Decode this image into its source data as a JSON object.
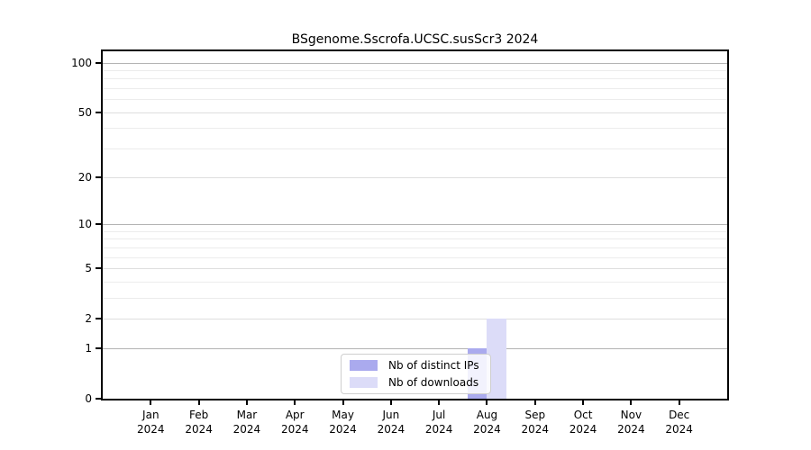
{
  "chart_data": {
    "type": "bar",
    "title": "BSgenome.Sscrofa.UCSC.susScr3 2024",
    "categories": [
      "Jan",
      "Feb",
      "Mar",
      "Apr",
      "May",
      "Jun",
      "Jul",
      "Aug",
      "Sep",
      "Oct",
      "Nov",
      "Dec"
    ],
    "year_label": "2024",
    "series": [
      {
        "name": "Nb of distinct IPs",
        "color": "#aaaaee",
        "values": [
          0,
          0,
          0,
          0,
          0,
          0,
          0,
          1,
          0,
          0,
          0,
          0
        ]
      },
      {
        "name": "Nb of downloads",
        "color": "#dcdcf8",
        "values": [
          0,
          0,
          0,
          0,
          0,
          0,
          0,
          2,
          0,
          0,
          0,
          0
        ]
      }
    ],
    "yscale": "log1p",
    "yticks": [
      0,
      1,
      2,
      5,
      10,
      20,
      50,
      100
    ],
    "ylim": [
      0,
      117
    ],
    "xlabel": "",
    "ylabel": "",
    "grid": {
      "on": true,
      "decade_lines": [
        1,
        10,
        100
      ],
      "major_lines": [
        2,
        5,
        20,
        50
      ],
      "minor_lines": [
        3,
        4,
        6,
        7,
        8,
        9,
        30,
        40,
        60,
        70,
        80,
        90
      ]
    },
    "legend_position": "bottom-center"
  },
  "colors": {
    "decade_grid": "#b3b3b3",
    "major_grid": "#dedede",
    "minor_grid": "#ececec",
    "axis": "#000000",
    "background": "#ffffff"
  }
}
